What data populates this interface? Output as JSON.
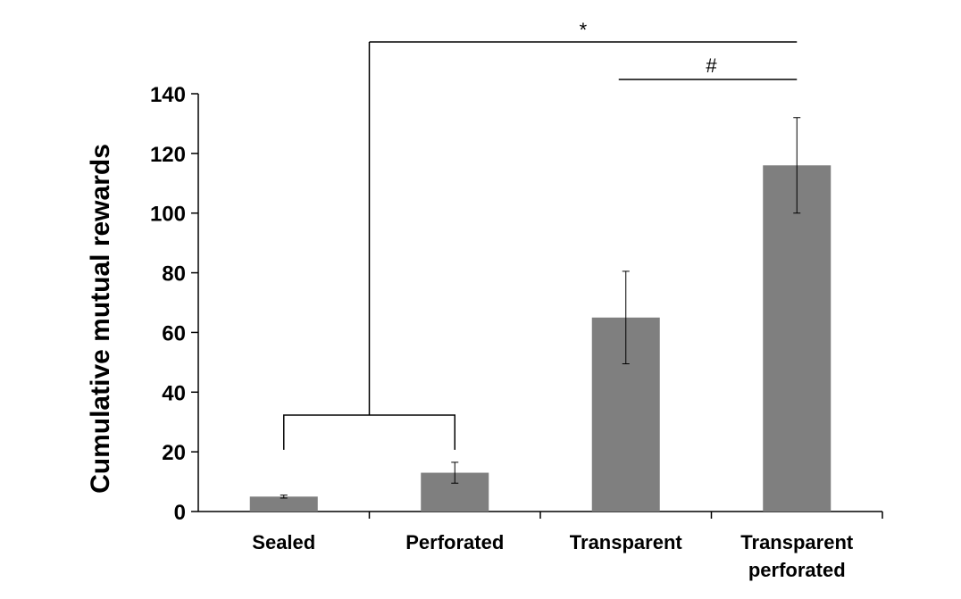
{
  "chart_data": {
    "type": "bar",
    "title": "",
    "xlabel": "",
    "ylabel": "Cumulative mutual rewards",
    "ylim": [
      0,
      140
    ],
    "yticks": [
      0,
      20,
      40,
      60,
      80,
      100,
      120,
      140
    ],
    "grid": false,
    "bar_color": "#7f7f7f",
    "categories": [
      [
        "Sealed"
      ],
      [
        "Perforated"
      ],
      [
        "Transparent"
      ],
      [
        "Transparent",
        "perforated"
      ]
    ],
    "values": [
      5,
      13,
      65,
      116
    ],
    "error": [
      0.5,
      3.5,
      15.5,
      16
    ],
    "significance": [
      {
        "symbol": "*",
        "from_group": [
          0,
          1
        ],
        "to_category": 3
      },
      {
        "symbol": "#",
        "from_category": 2,
        "to_category": 3
      }
    ]
  }
}
